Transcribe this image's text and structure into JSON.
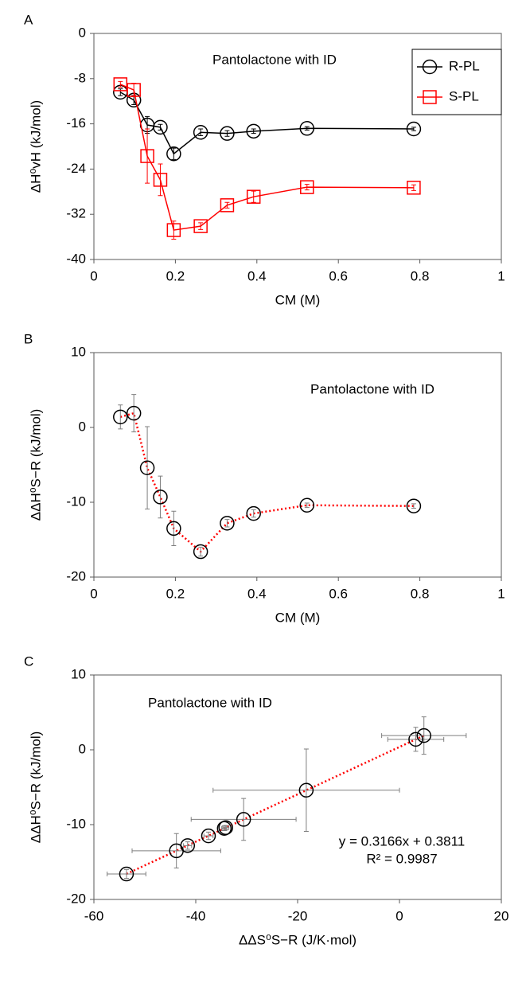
{
  "chart_data": [
    {
      "type": "line",
      "label": "A",
      "annotation": "Pantolactone with ID",
      "xlabel": "CM (M)",
      "ylabel": "ΔH⁰vH (kJ/mol)",
      "x": [
        0.065,
        0.098,
        0.131,
        0.163,
        0.196,
        0.262,
        0.327,
        0.392,
        0.523,
        0.785
      ],
      "xlim": [
        0,
        1
      ],
      "xticks": [
        0,
        0.2,
        0.4,
        0.6,
        0.8,
        1
      ],
      "ylim": [
        -40,
        0
      ],
      "yticks": [
        0,
        -8,
        -16,
        -24,
        -32,
        -40
      ],
      "legend": "upper right",
      "series": [
        {
          "name": "R-PL",
          "color": "#000000",
          "marker": "circle",
          "line_style": "solid",
          "values": [
            -10.4,
            -11.8,
            -16.2,
            -16.6,
            -21.3,
            -17.5,
            -17.7,
            -17.3,
            -16.8,
            -16.9
          ],
          "errors": [
            0.6,
            0.8,
            1.5,
            0.5,
            1.0,
            0.6,
            0.5,
            0.4,
            0.3,
            0.3
          ]
        },
        {
          "name": "S-PL",
          "color": "#ff0000",
          "marker": "square",
          "line_style": "solid",
          "values": [
            -9.0,
            -10.0,
            -21.7,
            -25.9,
            -34.8,
            -34.1,
            -30.4,
            -28.9,
            -27.2,
            -27.3
          ],
          "errors": [
            0.5,
            1.2,
            4.8,
            2.8,
            1.6,
            0.6,
            0.5,
            1.0,
            0.5,
            0.5
          ]
        }
      ]
    },
    {
      "type": "line",
      "label": "B",
      "annotation": "Pantolactone with ID",
      "xlabel": "CM (M)",
      "ylabel": "ΔΔH⁰S−R (kJ/mol)",
      "x": [
        0.065,
        0.098,
        0.131,
        0.163,
        0.196,
        0.262,
        0.327,
        0.392,
        0.523,
        0.785
      ],
      "xlim": [
        0,
        1
      ],
      "xticks": [
        0,
        0.2,
        0.4,
        0.6,
        0.8,
        1
      ],
      "ylim": [
        -20,
        10
      ],
      "yticks": [
        10,
        0,
        -10,
        -20
      ],
      "series": [
        {
          "color": "#000000",
          "line_color": "#ff0000",
          "error_color": "#7f7f7f",
          "marker": "circle",
          "line_style": "dotted",
          "values": [
            1.4,
            1.9,
            -5.4,
            -9.3,
            -13.5,
            -16.6,
            -12.8,
            -11.5,
            -10.4,
            -10.5
          ],
          "errors": [
            1.6,
            2.5,
            5.5,
            2.8,
            2.3,
            0.6,
            0.5,
            0.5,
            0.3,
            0.3
          ]
        }
      ]
    },
    {
      "type": "scatter",
      "label": "C",
      "annotation": "Pantolactone with ID",
      "xlabel": "ΔΔS⁰S−R (J/K·mol)",
      "ylabel": "ΔΔH⁰S−R (kJ/mol)",
      "xlim": [
        -60,
        20
      ],
      "xticks": [
        -60,
        -40,
        -20,
        0,
        20
      ],
      "ylim": [
        -20,
        10
      ],
      "yticks": [
        10,
        0,
        -10,
        -20
      ],
      "series": [
        {
          "color": "#000000",
          "error_color": "#7f7f7f",
          "marker": "circle",
          "x": [
            3.2,
            4.8,
            -18.3,
            -30.6,
            -43.8,
            -53.6,
            -41.6,
            -37.5,
            -34.1,
            -34.4
          ],
          "x_errors": [
            5.5,
            8.3,
            18.3,
            10.3,
            8.7,
            3.8,
            0.8,
            0.9,
            0.6,
            0.5
          ],
          "values": [
            1.4,
            1.9,
            -5.4,
            -9.3,
            -13.5,
            -16.6,
            -12.8,
            -11.5,
            -10.4,
            -10.5
          ],
          "errors": [
            1.6,
            2.5,
            5.5,
            2.8,
            2.3,
            0.6,
            0.5,
            0.5,
            0.3,
            0.3
          ]
        }
      ],
      "fit": {
        "label": "y = 0.3166x + 0.3811",
        "r2_label": "R² = 0.9987",
        "slope": 0.3166,
        "intercept": 0.3811,
        "color": "#ff0000"
      }
    }
  ]
}
